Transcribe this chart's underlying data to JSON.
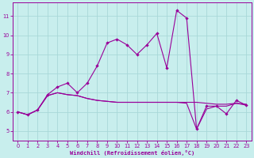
{
  "xlabel": "Windchill (Refroidissement éolien,°C)",
  "bg_color": "#c8eeed",
  "line_color": "#990099",
  "grid_color": "#a8d8d8",
  "x_ticks": [
    0,
    1,
    2,
    3,
    4,
    5,
    6,
    7,
    8,
    9,
    10,
    11,
    12,
    13,
    14,
    15,
    16,
    17,
    18,
    19,
    20,
    21,
    22,
    23
  ],
  "y_ticks": [
    5,
    6,
    7,
    8,
    9,
    10,
    11
  ],
  "ylim": [
    4.5,
    11.7
  ],
  "xlim": [
    -0.5,
    23.5
  ],
  "series1_y": [
    6.0,
    5.85,
    6.1,
    6.9,
    7.3,
    7.5,
    7.0,
    7.5,
    8.4,
    9.6,
    9.8,
    9.5,
    9.0,
    9.5,
    10.1,
    8.3,
    11.3,
    10.9,
    5.1,
    6.3,
    6.3,
    5.9,
    6.6,
    6.35
  ],
  "series2_y": [
    6.0,
    5.85,
    6.1,
    6.85,
    7.0,
    6.9,
    6.85,
    6.7,
    6.6,
    6.55,
    6.5,
    6.5,
    6.5,
    6.5,
    6.5,
    6.5,
    6.5,
    6.5,
    6.5,
    6.45,
    6.4,
    6.4,
    6.45,
    6.4
  ],
  "series3_y": [
    6.0,
    5.85,
    6.1,
    6.85,
    7.0,
    6.9,
    6.85,
    6.7,
    6.6,
    6.55,
    6.5,
    6.5,
    6.5,
    6.5,
    6.5,
    6.5,
    6.5,
    6.45,
    5.1,
    6.15,
    6.3,
    6.3,
    6.45,
    6.35
  ]
}
